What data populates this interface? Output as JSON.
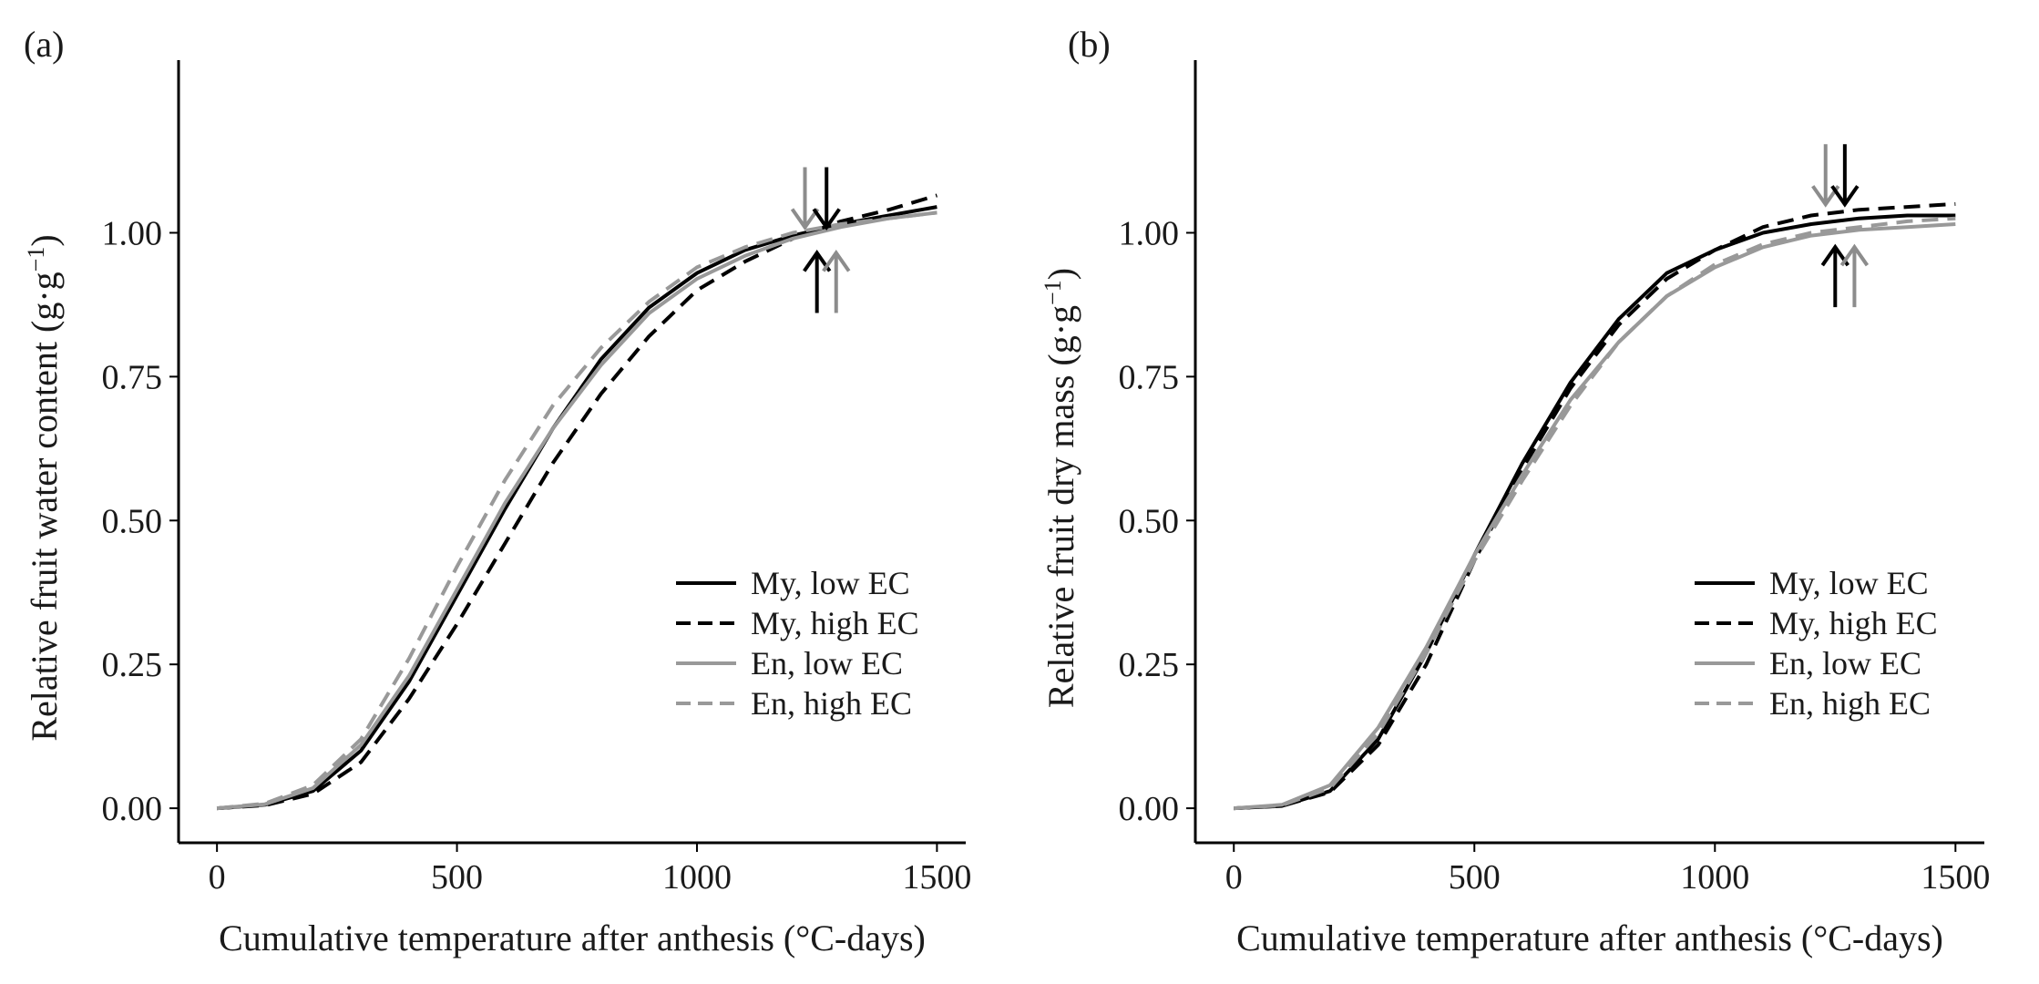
{
  "chart_data": [
    {
      "type": "line",
      "panel_label": "(a)",
      "xlabel": "Cumulative temperature after anthesis (°C-days)",
      "ylabel": "Relative fruit water content (g·g−1)",
      "ylabel_main": "Relative fruit water content (g·g",
      "ylabel_sup": "−1",
      "ylabel_close": ")",
      "xlim": [
        -80,
        1560
      ],
      "ylim": [
        -0.06,
        1.3
      ],
      "xticks": [
        0,
        500,
        1000,
        1500
      ],
      "xtick_labels": [
        "0",
        "500",
        "1000",
        "1500"
      ],
      "yticks": [
        0,
        0.25,
        0.5,
        0.75,
        1.0
      ],
      "ytick_labels": [
        "0.00",
        "0.25",
        "0.50",
        "0.75",
        "1.00"
      ],
      "legend": {
        "position": "bottom-right",
        "entries": [
          "My, low EC",
          "My, high EC",
          "En, low EC",
          "En, high EC"
        ]
      },
      "series": [
        {
          "name": "My, low EC",
          "color": "#000000",
          "dash": "solid",
          "x": [
            0,
            100,
            200,
            300,
            400,
            500,
            600,
            700,
            800,
            900,
            1000,
            1100,
            1200,
            1300,
            1400,
            1500
          ],
          "y": [
            0.0,
            0.006,
            0.03,
            0.1,
            0.22,
            0.37,
            0.52,
            0.66,
            0.78,
            0.87,
            0.93,
            0.97,
            0.995,
            1.015,
            1.03,
            1.045
          ]
        },
        {
          "name": "My, high EC",
          "color": "#000000",
          "dash": "dashed",
          "x": [
            0,
            100,
            200,
            300,
            400,
            500,
            600,
            700,
            800,
            900,
            1000,
            1100,
            1200,
            1300,
            1400,
            1500
          ],
          "y": [
            0.0,
            0.005,
            0.025,
            0.08,
            0.19,
            0.32,
            0.46,
            0.6,
            0.72,
            0.82,
            0.9,
            0.95,
            0.99,
            1.02,
            1.04,
            1.065
          ]
        },
        {
          "name": "En, low EC",
          "color": "#999999",
          "dash": "solid",
          "x": [
            0,
            100,
            200,
            300,
            400,
            500,
            600,
            700,
            800,
            900,
            1000,
            1100,
            1200,
            1300,
            1400,
            1500
          ],
          "y": [
            0.0,
            0.007,
            0.035,
            0.11,
            0.23,
            0.38,
            0.53,
            0.66,
            0.77,
            0.86,
            0.92,
            0.96,
            0.99,
            1.01,
            1.025,
            1.035
          ]
        },
        {
          "name": "En, high EC",
          "color": "#999999",
          "dash": "dashed",
          "x": [
            0,
            100,
            200,
            300,
            400,
            500,
            600,
            700,
            800,
            900,
            1000,
            1100,
            1200,
            1300,
            1400,
            1500
          ],
          "y": [
            0.0,
            0.008,
            0.04,
            0.12,
            0.26,
            0.42,
            0.57,
            0.7,
            0.8,
            0.88,
            0.94,
            0.975,
            1.0,
            1.015,
            1.025,
            1.035
          ]
        }
      ],
      "annotations": [
        {
          "kind": "arrow-down",
          "x": 1225,
          "y": 1.0,
          "color": "#8c8c8c"
        },
        {
          "kind": "arrow-down",
          "x": 1270,
          "y": 1.0,
          "color": "#000000"
        },
        {
          "kind": "arrow-up",
          "x": 1250,
          "y": 1.0,
          "color": "#000000"
        },
        {
          "kind": "arrow-up",
          "x": 1290,
          "y": 1.0,
          "color": "#8c8c8c"
        }
      ]
    },
    {
      "type": "line",
      "panel_label": "(b)",
      "xlabel": "Cumulative temperature after anthesis (°C-days)",
      "ylabel": "Relative fruit dry mass (g·g−1)",
      "ylabel_main": "Relative fruit dry mass (g·g",
      "ylabel_sup": "−1",
      "ylabel_close": ")",
      "xlim": [
        -80,
        1560
      ],
      "ylim": [
        -0.06,
        1.3
      ],
      "xticks": [
        0,
        500,
        1000,
        1500
      ],
      "xtick_labels": [
        "0",
        "500",
        "1000",
        "1500"
      ],
      "yticks": [
        0,
        0.25,
        0.5,
        0.75,
        1.0
      ],
      "ytick_labels": [
        "0.00",
        "0.25",
        "0.50",
        "0.75",
        "1.00"
      ],
      "legend": {
        "position": "bottom-right",
        "entries": [
          "My, low EC",
          "My, high EC",
          "En, low EC",
          "En, high EC"
        ]
      },
      "series": [
        {
          "name": "My, low EC",
          "color": "#000000",
          "dash": "solid",
          "x": [
            0,
            100,
            200,
            300,
            400,
            500,
            600,
            700,
            800,
            900,
            1000,
            1100,
            1200,
            1300,
            1400,
            1500
          ],
          "y": [
            0.0,
            0.004,
            0.03,
            0.12,
            0.27,
            0.44,
            0.6,
            0.74,
            0.85,
            0.93,
            0.97,
            1.0,
            1.015,
            1.025,
            1.03,
            1.03
          ]
        },
        {
          "name": "My, high EC",
          "color": "#000000",
          "dash": "dashed",
          "x": [
            0,
            100,
            200,
            300,
            400,
            500,
            600,
            700,
            800,
            900,
            1000,
            1100,
            1200,
            1300,
            1400,
            1500
          ],
          "y": [
            0.0,
            0.004,
            0.028,
            0.11,
            0.25,
            0.43,
            0.59,
            0.73,
            0.84,
            0.92,
            0.97,
            1.01,
            1.03,
            1.04,
            1.045,
            1.05
          ]
        },
        {
          "name": "En, low EC",
          "color": "#999999",
          "dash": "solid",
          "x": [
            0,
            100,
            200,
            300,
            400,
            500,
            600,
            700,
            800,
            900,
            1000,
            1100,
            1200,
            1300,
            1400,
            1500
          ],
          "y": [
            0.0,
            0.006,
            0.04,
            0.14,
            0.28,
            0.44,
            0.58,
            0.71,
            0.81,
            0.89,
            0.94,
            0.975,
            0.995,
            1.005,
            1.01,
            1.015
          ]
        },
        {
          "name": "En, high EC",
          "color": "#999999",
          "dash": "dashed",
          "x": [
            0,
            100,
            200,
            300,
            400,
            500,
            600,
            700,
            800,
            900,
            1000,
            1100,
            1200,
            1300,
            1400,
            1500
          ],
          "y": [
            0.0,
            0.005,
            0.035,
            0.13,
            0.27,
            0.43,
            0.57,
            0.7,
            0.81,
            0.89,
            0.945,
            0.98,
            1.0,
            1.01,
            1.02,
            1.025
          ]
        }
      ],
      "annotations": [
        {
          "kind": "arrow-down",
          "x": 1230,
          "y": 1.04,
          "color": "#8c8c8c"
        },
        {
          "kind": "arrow-down",
          "x": 1270,
          "y": 1.04,
          "color": "#000000"
        },
        {
          "kind": "arrow-up",
          "x": 1250,
          "y": 1.01,
          "color": "#000000"
        },
        {
          "kind": "arrow-up",
          "x": 1290,
          "y": 1.01,
          "color": "#8c8c8c"
        }
      ]
    }
  ]
}
